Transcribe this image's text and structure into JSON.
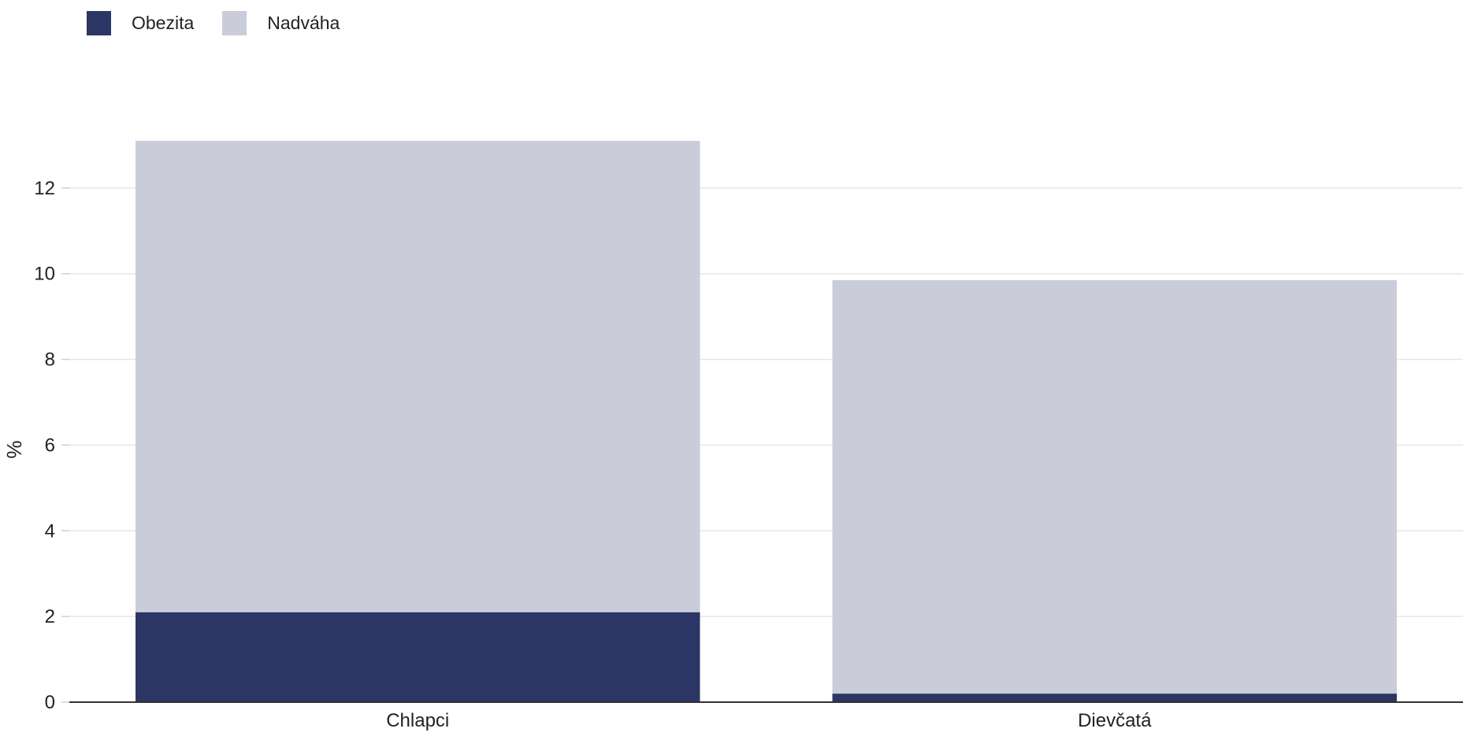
{
  "chart_data": {
    "type": "bar",
    "stacked": true,
    "categories": [
      "Chlapci",
      "Dievčatá"
    ],
    "series": [
      {
        "name": "Obezita",
        "color": "#2b3664",
        "values": [
          2.1,
          0.2
        ]
      },
      {
        "name": "Nadváha",
        "color": "#cacdd9",
        "values": [
          11.0,
          9.65
        ]
      }
    ],
    "title": "",
    "xlabel": "",
    "ylabel": "%",
    "ylim": [
      0,
      14
    ],
    "yticks": [
      0,
      2,
      4,
      6,
      8,
      10,
      12
    ],
    "grid": true,
    "legend_position": "top-left"
  }
}
